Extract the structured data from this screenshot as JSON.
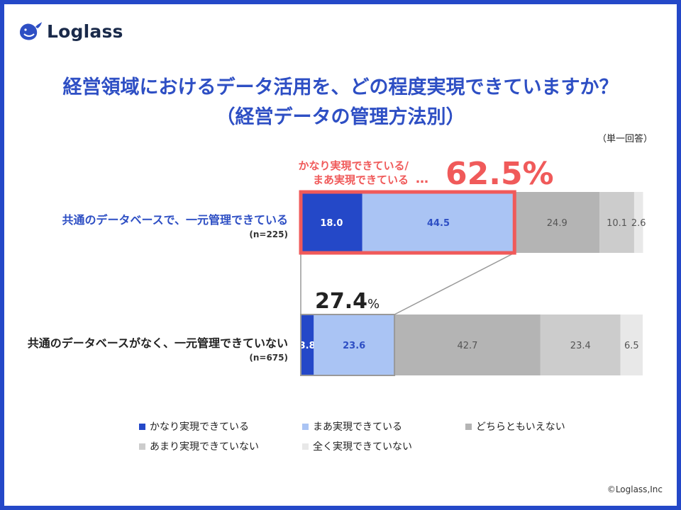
{
  "brand": {
    "logo_text": "Loglass",
    "copyright": "©Loglass,Inc"
  },
  "title": {
    "line1": "経営領域におけるデータ活用を、どの程度実現できていますか？",
    "line2": "（経営データの管理方法別）",
    "unit": "（単一回答）"
  },
  "callout": {
    "label_line1": "かなり実現できている/",
    "label_line2": "まあ実現できている",
    "dots": "…",
    "value": "62.5%",
    "row2_value": "27.4",
    "row2_symbol": "%"
  },
  "colors": {
    "category_1": "#2448c8",
    "category_2": "#aac4f4",
    "category_3": "#b4b4b4",
    "category_4": "#cccccc",
    "category_5": "#e8e8e8",
    "highlight": "#f05a5a"
  },
  "chart_data": {
    "type": "bar",
    "orientation": "horizontal-stacked-100",
    "categories": [
      "共通のデータベースで、一元管理できている",
      "共通のデータベースがなく、一元管理できていない"
    ],
    "sample_sizes": [
      "(n=225)",
      "(n=675)"
    ],
    "series": [
      {
        "name": "かなり実現できている",
        "values": [
          18.0,
          3.8
        ]
      },
      {
        "name": "まあ実現できている",
        "values": [
          44.5,
          23.6
        ]
      },
      {
        "name": "どちらともいえない",
        "values": [
          24.9,
          42.7
        ]
      },
      {
        "name": "あまり実現できていない",
        "values": [
          10.1,
          23.4
        ]
      },
      {
        "name": "全く実現できていない",
        "values": [
          2.6,
          6.5
        ]
      }
    ],
    "data_labels": [
      [
        "18.0",
        "44.5",
        "24.9",
        "10.1",
        "2.6"
      ],
      [
        "3.8",
        "23.6",
        "42.7",
        "23.4",
        "6.5"
      ]
    ],
    "xlim": [
      0,
      100
    ],
    "legend_position": "bottom"
  }
}
